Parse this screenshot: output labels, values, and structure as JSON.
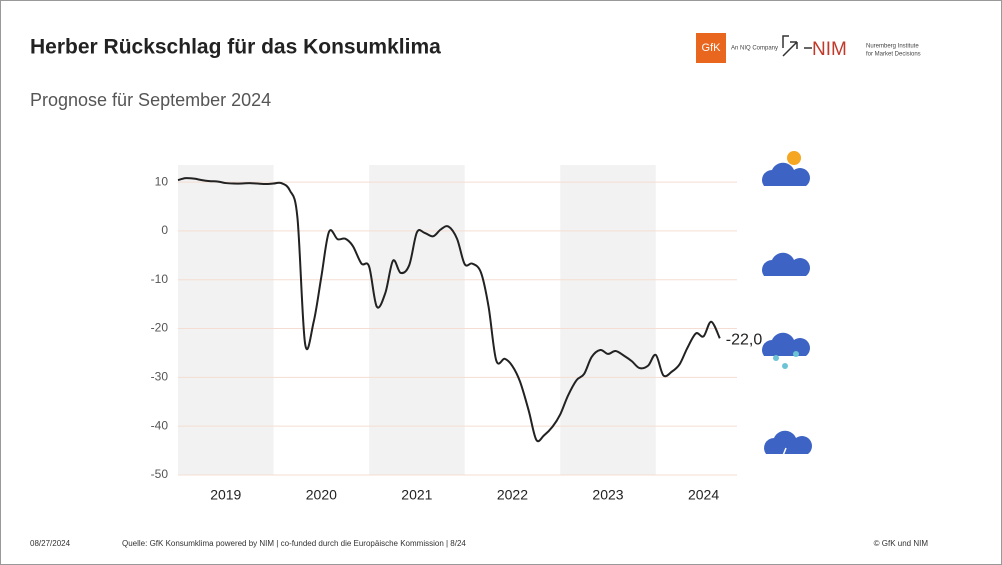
{
  "chart_data": {
    "type": "line",
    "title": "Herber Rückschlag für das Konsumklima",
    "subtitle": "Prognose für September 2024",
    "x": [
      2019,
      2019.08,
      2019.17,
      2019.25,
      2019.33,
      2019.42,
      2019.5,
      2019.58,
      2019.67,
      2019.75,
      2019.83,
      2019.92,
      2020,
      2020.08,
      2020.17,
      2020.25,
      2020.33,
      2020.42,
      2020.5,
      2020.58,
      2020.67,
      2020.75,
      2020.83,
      2020.92,
      2021,
      2021.08,
      2021.17,
      2021.25,
      2021.33,
      2021.42,
      2021.5,
      2021.58,
      2021.67,
      2021.75,
      2021.83,
      2021.92,
      2022,
      2022.08,
      2022.17,
      2022.25,
      2022.33,
      2022.42,
      2022.5,
      2022.58,
      2022.67,
      2022.75,
      2022.83,
      2022.92,
      2023,
      2023.08,
      2023.17,
      2023.25,
      2023.33,
      2023.42,
      2023.5,
      2023.58,
      2023.67,
      2023.75,
      2023.83,
      2023.92,
      2024,
      2024.08,
      2024.17,
      2024.25,
      2024.33,
      2024.42,
      2024.5,
      2024.58,
      2024.67
    ],
    "series": [
      {
        "name": "Konsumklima",
        "color": "#222222",
        "values": [
          10.4,
          10.8,
          10.7,
          10.4,
          10.2,
          10.1,
          9.8,
          9.7,
          9.7,
          9.8,
          9.7,
          9.6,
          9.7,
          9.8,
          8.3,
          2.7,
          -23.1,
          -18.6,
          -9.4,
          -0.2,
          -1.7,
          -1.6,
          -3.1,
          -6.7,
          -7.3,
          -15.5,
          -12.7,
          -6.1,
          -8.6,
          -7.0,
          -0.3,
          -0.4,
          -1.1,
          0.3,
          0.9,
          -1.6,
          -6.8,
          -6.7,
          -8.5,
          -15.5,
          -26.5,
          -26.2,
          -27.7,
          -30.9,
          -36.8,
          -42.8,
          -41.9,
          -40.1,
          -37.6,
          -33.8,
          -30.6,
          -29.3,
          -25.8,
          -24.4,
          -25.2,
          -24.6,
          -25.6,
          -26.7,
          -28.1,
          -27.6,
          -25.4,
          -29.6,
          -28.8,
          -27.3,
          -24.0,
          -21.0,
          -21.6,
          -18.6,
          -22.0
        ],
        "value_labels": [
          null,
          null,
          null,
          null,
          null,
          null,
          null,
          null,
          null,
          null,
          null,
          null,
          null,
          null,
          null,
          null,
          null,
          null,
          null,
          null,
          null,
          null,
          null,
          null,
          null,
          null,
          null,
          null,
          null,
          null,
          null,
          null,
          null,
          null,
          null,
          null,
          null,
          null,
          null,
          null,
          null,
          null,
          null,
          null,
          null,
          null,
          null,
          null,
          null,
          null,
          null,
          null,
          null,
          null,
          null,
          null,
          null,
          null,
          null,
          null,
          null,
          null,
          null,
          null,
          null,
          null,
          null,
          null,
          "-22,0"
        ]
      }
    ],
    "xlim": [
      2019,
      2024.85
    ],
    "xticks": [
      {
        "value": 2019.5,
        "label": "2019"
      },
      {
        "value": 2020.5,
        "label": "2020"
      },
      {
        "value": 2021.5,
        "label": "2021"
      },
      {
        "value": 2022.5,
        "label": "2022"
      },
      {
        "value": 2023.5,
        "label": "2023"
      },
      {
        "value": 2024.5,
        "label": "2024"
      }
    ],
    "ylim": [
      -50,
      13.5
    ],
    "yticks": [
      10,
      0,
      -10,
      -20,
      -30,
      -40,
      -50
    ],
    "grid": true
  },
  "logos": {
    "gfk": "GfK",
    "gfk_sub": "An NIQ Company",
    "nim": "NIM",
    "nim_sub_1": "Nuremberg Institute",
    "nim_sub_2": "for Market Decisions"
  },
  "footer": {
    "date": "08/27/2024",
    "source": "Quelle: GfK Konsumklima powered by NIM | co-funded durch die Europäische Kommission | 8/24",
    "copyright": "© GfK und NIM"
  }
}
